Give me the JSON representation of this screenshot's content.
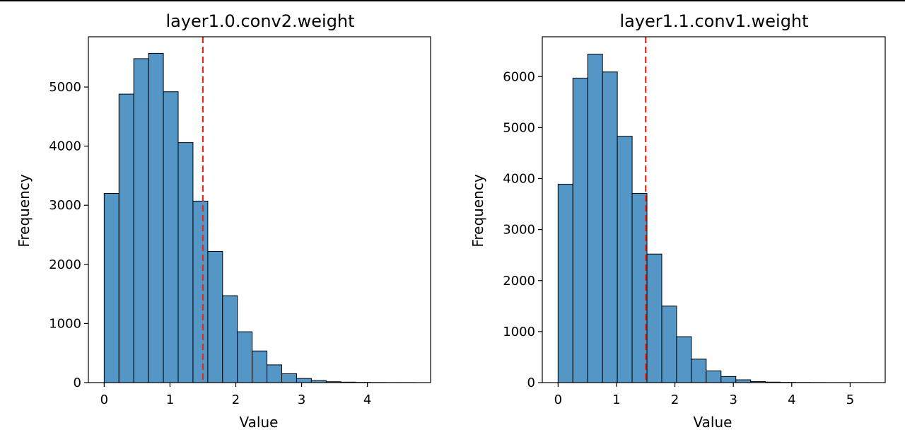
{
  "chart_data": [
    {
      "type": "bar",
      "title": "layer1.0.conv2.weight",
      "xlabel": "Value",
      "ylabel": "Frequency",
      "bin_edges": [
        0.0,
        0.2249,
        0.4498,
        0.6747,
        0.8996,
        1.1245,
        1.3494,
        1.5743,
        1.7992,
        2.0241,
        2.249,
        2.4739,
        2.6988,
        2.9237,
        3.1486,
        3.3735,
        3.5984,
        3.8233,
        4.0482,
        4.2731,
        4.498,
        4.7229
      ],
      "values": [
        3200,
        4880,
        5480,
        5570,
        4920,
        4060,
        3070,
        2220,
        1470,
        860,
        535,
        300,
        150,
        70,
        35,
        15,
        8,
        4,
        2,
        1,
        1
      ],
      "xlim": [
        -0.24,
        4.96
      ],
      "ylim": [
        0,
        5850
      ],
      "xticks": [
        0,
        1,
        2,
        3,
        4
      ],
      "yticks": [
        0,
        1000,
        2000,
        3000,
        4000,
        5000
      ],
      "vline": 1.5,
      "bar_color": "#5497c6",
      "vline_color": "#e8271b"
    },
    {
      "type": "bar",
      "title": "layer1.1.conv1.weight",
      "xlabel": "Value",
      "ylabel": "Frequency",
      "bin_edges": [
        0.0,
        0.2536,
        0.5072,
        0.7608,
        1.0144,
        1.268,
        1.5216,
        1.7752,
        2.0288,
        2.2824,
        2.536,
        2.7896,
        3.0432,
        3.2968,
        3.5504,
        3.804,
        4.0576,
        4.3112,
        4.5648,
        4.8184,
        5.072,
        5.3256
      ],
      "values": [
        3890,
        5970,
        6440,
        6090,
        4830,
        3710,
        2520,
        1500,
        900,
        460,
        230,
        120,
        55,
        20,
        10,
        5,
        3,
        2,
        1,
        1,
        1
      ],
      "xlim": [
        -0.27,
        5.6
      ],
      "ylim": [
        0,
        6780
      ],
      "xticks": [
        0,
        1,
        2,
        3,
        4,
        5
      ],
      "yticks": [
        0,
        1000,
        2000,
        3000,
        4000,
        5000,
        6000
      ],
      "vline": 1.5,
      "bar_color": "#5497c6",
      "vline_color": "#e8271b"
    }
  ]
}
